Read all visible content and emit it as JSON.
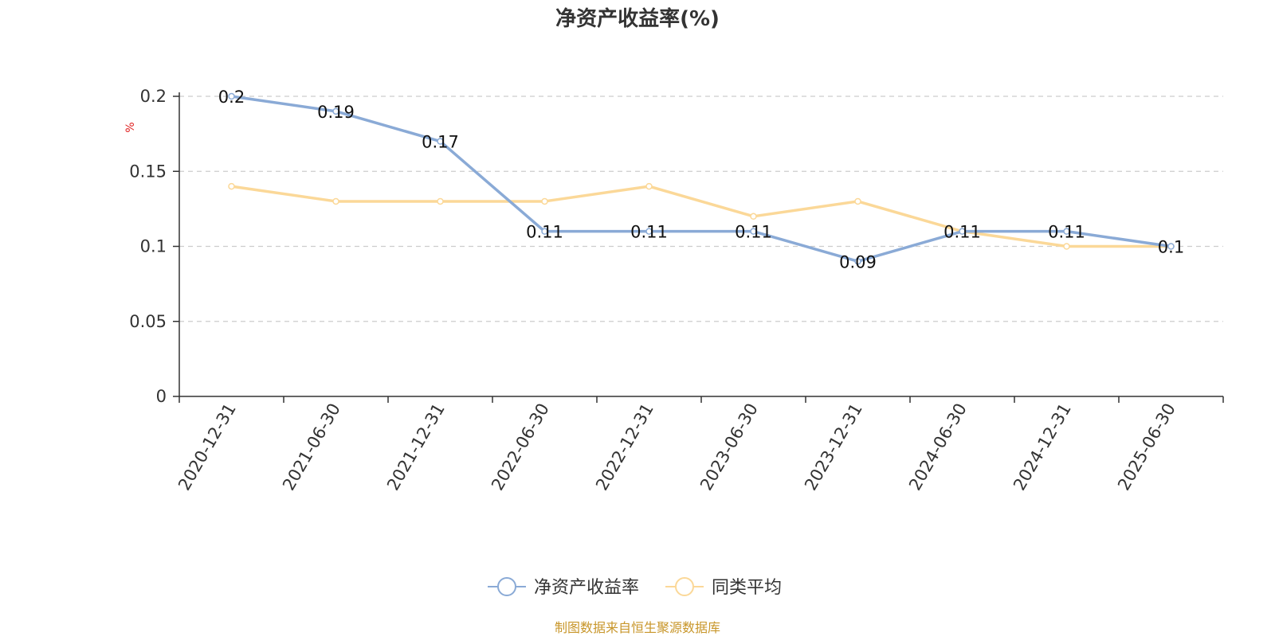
{
  "chart_data": {
    "type": "line",
    "title": "净资产收益率(%)",
    "ylabel": "%",
    "xlabel": "",
    "categories": [
      "2020-12-31",
      "2021-06-30",
      "2021-12-31",
      "2022-06-30",
      "2022-12-31",
      "2023-06-30",
      "2023-12-31",
      "2024-06-30",
      "2024-12-31",
      "2025-06-30"
    ],
    "ylim": [
      0,
      0.2
    ],
    "yticks": [
      "0",
      "0.05",
      "0.1",
      "0.15",
      "0.2"
    ],
    "grid": true,
    "legend_position": "bottom",
    "series": [
      {
        "name": "净资产收益率",
        "color": "#8aaad6",
        "values": [
          0.2,
          0.19,
          0.17,
          0.11,
          0.11,
          0.11,
          0.09,
          0.11,
          0.11,
          0.1
        ],
        "labels": [
          "0.2",
          "0.19",
          "0.17",
          "0.11",
          "0.11",
          "0.11",
          "0.09",
          "0.11",
          "0.11",
          "0.1"
        ]
      },
      {
        "name": "同类平均",
        "color": "#fbd898",
        "values": [
          0.14,
          0.13,
          0.13,
          0.13,
          0.14,
          0.12,
          0.13,
          0.11,
          0.1,
          0.1
        ]
      }
    ],
    "source_note": "制图数据来自恒生聚源数据库"
  }
}
